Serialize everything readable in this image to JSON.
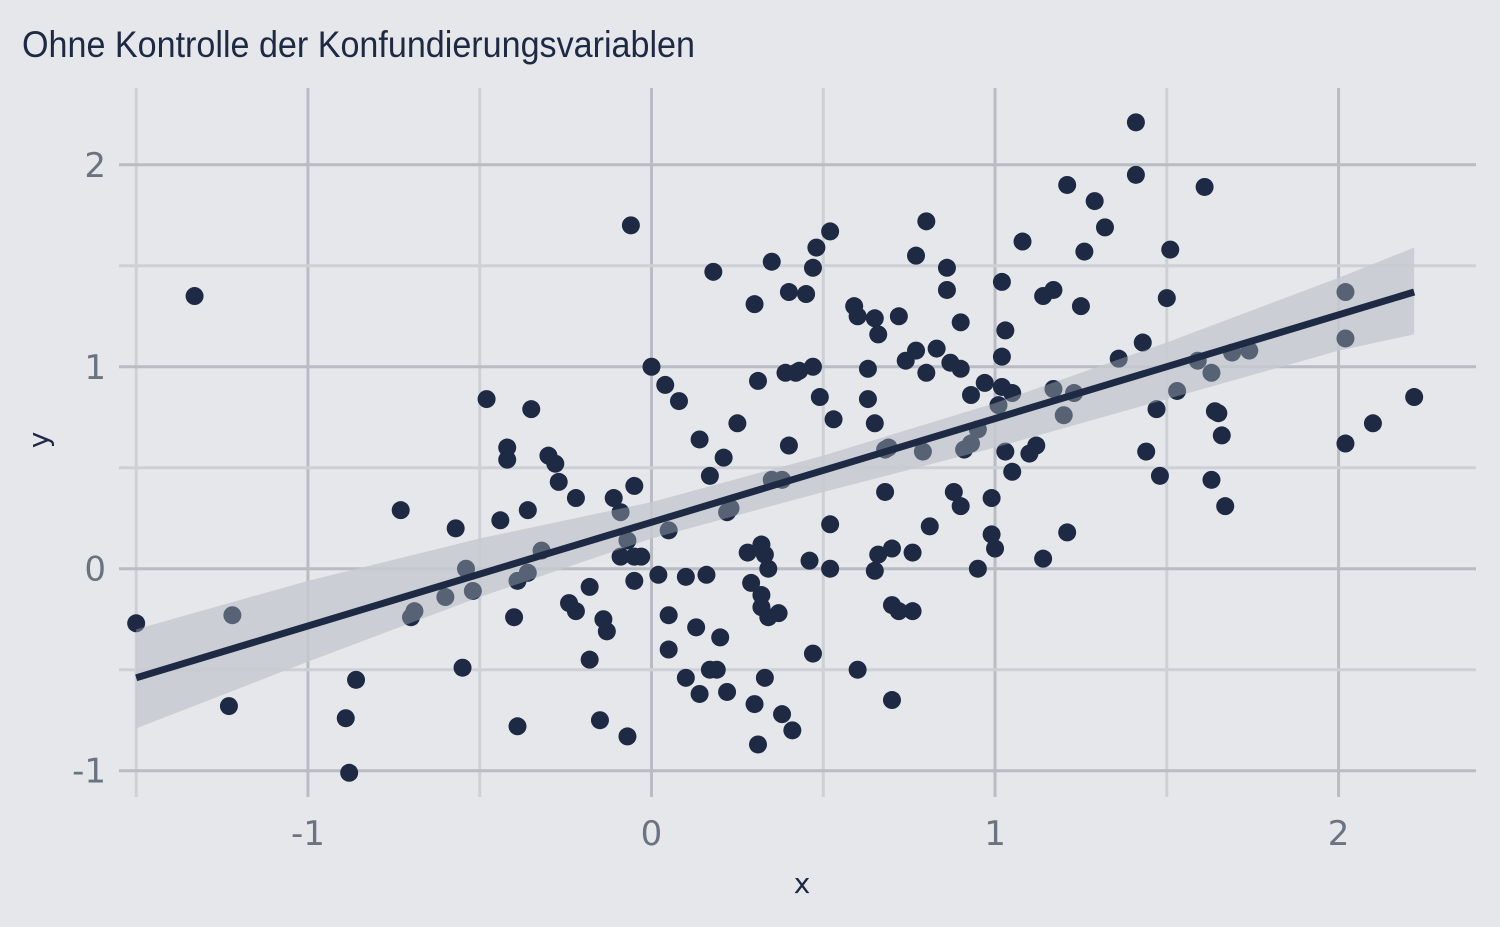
{
  "chart_data": {
    "type": "scatter",
    "title": "Ohne Kontrolle der Konfundierungsvariablen",
    "xlabel": "x",
    "ylabel": "y",
    "xlim": [
      -1.55,
      2.4
    ],
    "ylim": [
      -1.13,
      2.38
    ],
    "x_ticks": [
      -1,
      0,
      1,
      2
    ],
    "y_ticks": [
      -1,
      0,
      1,
      2
    ],
    "x_tick_labels": [
      "-1",
      "0",
      "1",
      "2"
    ],
    "y_tick_labels": [
      "-1",
      "0",
      "1",
      "2"
    ],
    "grid": true,
    "legend": "none",
    "colors": {
      "background": "#e5e7eb",
      "points": "#1e2a44",
      "fit_line": "#1e2a44",
      "confidence_band": "#c5cad1",
      "grid_major": "#b9bcc4",
      "grid_minor": "#cdd0d6",
      "tick_text": "#6b7280"
    },
    "points": [
      [
        -1.5,
        -0.27
      ],
      [
        -1.33,
        1.35
      ],
      [
        -1.22,
        -0.23
      ],
      [
        -1.23,
        -0.68
      ],
      [
        -0.89,
        -0.74
      ],
      [
        -0.88,
        -1.01
      ],
      [
        -0.86,
        -0.55
      ],
      [
        -0.73,
        0.29
      ],
      [
        -0.69,
        -0.21
      ],
      [
        -0.7,
        -0.24
      ],
      [
        -0.6,
        -0.14
      ],
      [
        -0.57,
        0.2
      ],
      [
        -0.55,
        -0.49
      ],
      [
        -0.54,
        0.0
      ],
      [
        -0.52,
        -0.11
      ],
      [
        -0.48,
        0.84
      ],
      [
        -0.44,
        0.24
      ],
      [
        -0.42,
        0.6
      ],
      [
        -0.42,
        0.54
      ],
      [
        -0.4,
        -0.24
      ],
      [
        -0.39,
        -0.78
      ],
      [
        -0.39,
        -0.06
      ],
      [
        -0.36,
        -0.02
      ],
      [
        -0.36,
        0.29
      ],
      [
        -0.35,
        0.79
      ],
      [
        -0.32,
        0.09
      ],
      [
        -0.3,
        0.56
      ],
      [
        -0.28,
        0.52
      ],
      [
        -0.27,
        0.43
      ],
      [
        -0.24,
        -0.17
      ],
      [
        -0.22,
        -0.21
      ],
      [
        -0.22,
        0.35
      ],
      [
        -0.18,
        -0.09
      ],
      [
        -0.18,
        -0.45
      ],
      [
        -0.15,
        -0.75
      ],
      [
        -0.14,
        -0.25
      ],
      [
        -0.13,
        -0.31
      ],
      [
        -0.11,
        0.35
      ],
      [
        -0.09,
        0.28
      ],
      [
        -0.09,
        0.06
      ],
      [
        -0.07,
        0.14
      ],
      [
        -0.07,
        -0.83
      ],
      [
        -0.06,
        1.7
      ],
      [
        -0.05,
        -0.06
      ],
      [
        -0.05,
        0.06
      ],
      [
        -0.05,
        0.41
      ],
      [
        -0.03,
        0.06
      ],
      [
        0.0,
        1.0
      ],
      [
        0.02,
        -0.03
      ],
      [
        0.04,
        0.91
      ],
      [
        0.05,
        0.19
      ],
      [
        0.05,
        -0.23
      ],
      [
        0.05,
        -0.4
      ],
      [
        0.08,
        0.83
      ],
      [
        0.1,
        -0.54
      ],
      [
        0.1,
        -0.04
      ],
      [
        0.13,
        -0.29
      ],
      [
        0.14,
        -0.62
      ],
      [
        0.14,
        0.64
      ],
      [
        0.16,
        -0.03
      ],
      [
        0.17,
        -0.5
      ],
      [
        0.17,
        0.46
      ],
      [
        0.18,
        1.47
      ],
      [
        0.19,
        -0.5
      ],
      [
        0.2,
        -0.34
      ],
      [
        0.21,
        0.55
      ],
      [
        0.22,
        0.28
      ],
      [
        0.22,
        -0.61
      ],
      [
        0.23,
        0.3
      ],
      [
        0.25,
        0.72
      ],
      [
        0.28,
        0.08
      ],
      [
        0.29,
        -0.07
      ],
      [
        0.3,
        1.31
      ],
      [
        0.3,
        -0.67
      ],
      [
        0.31,
        0.93
      ],
      [
        0.31,
        -0.87
      ],
      [
        0.32,
        -0.13
      ],
      [
        0.32,
        -0.19
      ],
      [
        0.32,
        0.12
      ],
      [
        0.33,
        -0.54
      ],
      [
        0.33,
        0.07
      ],
      [
        0.34,
        0.0
      ],
      [
        0.34,
        -0.24
      ],
      [
        0.35,
        0.44
      ],
      [
        0.35,
        1.52
      ],
      [
        0.37,
        -0.22
      ],
      [
        0.38,
        -0.72
      ],
      [
        0.38,
        0.44
      ],
      [
        0.39,
        0.97
      ],
      [
        0.4,
        1.37
      ],
      [
        0.4,
        0.61
      ],
      [
        0.41,
        -0.8
      ],
      [
        0.42,
        0.97
      ],
      [
        0.43,
        0.98
      ],
      [
        0.45,
        1.36
      ],
      [
        0.46,
        0.04
      ],
      [
        0.47,
        -0.42
      ],
      [
        0.47,
        1.0
      ],
      [
        0.47,
        1.49
      ],
      [
        0.48,
        1.59
      ],
      [
        0.49,
        0.85
      ],
      [
        0.52,
        1.67
      ],
      [
        0.52,
        0.22
      ],
      [
        0.52,
        0.0
      ],
      [
        0.53,
        0.74
      ],
      [
        0.6,
        -0.5
      ],
      [
        0.59,
        1.3
      ],
      [
        0.6,
        1.25
      ],
      [
        0.63,
        0.84
      ],
      [
        0.63,
        0.99
      ],
      [
        0.65,
        1.24
      ],
      [
        0.65,
        0.72
      ],
      [
        0.65,
        -0.01
      ],
      [
        0.66,
        1.16
      ],
      [
        0.66,
        0.07
      ],
      [
        0.68,
        0.59
      ],
      [
        0.68,
        0.38
      ],
      [
        0.69,
        0.6
      ],
      [
        0.7,
        -0.18
      ],
      [
        0.7,
        0.1
      ],
      [
        0.7,
        -0.65
      ],
      [
        0.72,
        1.25
      ],
      [
        0.72,
        -0.21
      ],
      [
        0.74,
        1.03
      ],
      [
        0.76,
        0.08
      ],
      [
        0.76,
        -0.21
      ],
      [
        0.77,
        1.55
      ],
      [
        0.77,
        1.08
      ],
      [
        0.79,
        0.58
      ],
      [
        0.8,
        1.72
      ],
      [
        0.8,
        0.97
      ],
      [
        0.81,
        0.21
      ],
      [
        0.83,
        1.09
      ],
      [
        0.86,
        1.49
      ],
      [
        0.86,
        1.38
      ],
      [
        0.87,
        1.02
      ],
      [
        0.88,
        0.38
      ],
      [
        0.9,
        1.22
      ],
      [
        0.9,
        0.31
      ],
      [
        0.9,
        0.99
      ],
      [
        0.91,
        0.59
      ],
      [
        0.93,
        0.86
      ],
      [
        0.93,
        0.62
      ],
      [
        0.95,
        0.0
      ],
      [
        0.95,
        0.69
      ],
      [
        0.97,
        0.92
      ],
      [
        0.99,
        0.35
      ],
      [
        0.99,
        0.17
      ],
      [
        1.0,
        0.1
      ],
      [
        1.01,
        0.81
      ],
      [
        1.02,
        1.42
      ],
      [
        1.02,
        1.05
      ],
      [
        1.02,
        0.9
      ],
      [
        1.03,
        0.58
      ],
      [
        1.03,
        1.18
      ],
      [
        1.05,
        0.87
      ],
      [
        1.05,
        0.48
      ],
      [
        1.08,
        1.62
      ],
      [
        1.1,
        0.57
      ],
      [
        1.12,
        0.61
      ],
      [
        1.14,
        1.35
      ],
      [
        1.14,
        0.05
      ],
      [
        1.17,
        1.38
      ],
      [
        1.17,
        0.89
      ],
      [
        1.2,
        0.76
      ],
      [
        1.21,
        1.9
      ],
      [
        1.21,
        0.18
      ],
      [
        1.23,
        0.87
      ],
      [
        1.25,
        1.3
      ],
      [
        1.26,
        1.57
      ],
      [
        1.29,
        1.82
      ],
      [
        1.32,
        1.69
      ],
      [
        1.36,
        1.04
      ],
      [
        1.41,
        2.21
      ],
      [
        1.41,
        1.95
      ],
      [
        1.43,
        1.12
      ],
      [
        1.44,
        0.58
      ],
      [
        1.47,
        0.79
      ],
      [
        1.48,
        0.46
      ],
      [
        1.5,
        1.34
      ],
      [
        1.51,
        1.58
      ],
      [
        1.53,
        0.88
      ],
      [
        1.59,
        1.03
      ],
      [
        1.61,
        1.89
      ],
      [
        1.63,
        0.97
      ],
      [
        1.63,
        0.44
      ],
      [
        1.64,
        0.78
      ],
      [
        1.65,
        0.77
      ],
      [
        1.66,
        0.66
      ],
      [
        1.67,
        0.31
      ],
      [
        1.69,
        1.07
      ],
      [
        1.74,
        1.08
      ],
      [
        2.02,
        1.37
      ],
      [
        2.02,
        1.14
      ],
      [
        2.02,
        0.62
      ],
      [
        2.1,
        0.72
      ],
      [
        2.22,
        0.85
      ]
    ],
    "fit_line": {
      "x": [
        -1.5,
        2.22
      ],
      "y": [
        -0.54,
        1.37
      ]
    },
    "confidence_band": {
      "x": [
        -1.5,
        -1.0,
        -0.5,
        0.0,
        0.5,
        1.0,
        1.5,
        2.0,
        2.22
      ],
      "lower": [
        -0.79,
        -0.46,
        -0.14,
        0.15,
        0.38,
        0.6,
        0.84,
        1.08,
        1.16
      ],
      "upper": [
        -0.3,
        -0.06,
        0.15,
        0.33,
        0.56,
        0.82,
        1.12,
        1.44,
        1.59
      ]
    }
  }
}
